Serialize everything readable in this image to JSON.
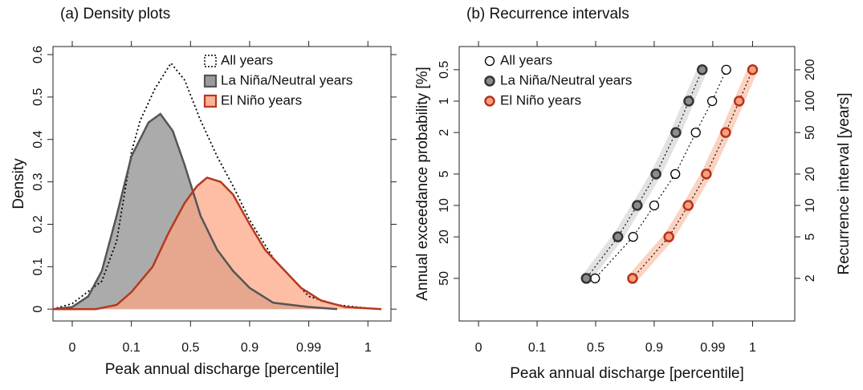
{
  "chart_data": [
    {
      "type": "density",
      "title": "(a) Density plots",
      "x_label": "Peak annual discharge [percentile]",
      "y_label": "Density",
      "xlim": [
        -0.326,
        5.39
      ],
      "xticks": [
        {
          "value": 0,
          "label": "0"
        },
        {
          "value": 1,
          "label": "0.1"
        },
        {
          "value": 2,
          "label": "0.5"
        },
        {
          "value": 3,
          "label": "0.9"
        },
        {
          "value": 4,
          "label": "0.99"
        },
        {
          "value": 5,
          "label": "1"
        }
      ],
      "ylim": [
        -0.028,
        0.619
      ],
      "yticks": [
        0,
        0.1,
        0.2,
        0.3,
        0.4,
        0.5,
        0.6
      ],
      "grid": false,
      "legend": "top-right",
      "series": [
        {
          "name": "All years",
          "color": "#000000",
          "line": "dotted",
          "x": [
            -0.33,
            0,
            0.5,
            0.75,
            1.0,
            1.15,
            1.4,
            1.67,
            1.9,
            2.17,
            2.45,
            2.72,
            3.0,
            3.4,
            4.0,
            4.48,
            5.0,
            5.23
          ],
          "values": [
            0,
            0.013,
            0.066,
            0.16,
            0.37,
            0.445,
            0.52,
            0.58,
            0.54,
            0.445,
            0.36,
            0.29,
            0.21,
            0.12,
            0.03,
            0.01,
            0.002,
            0
          ]
        },
        {
          "name": "La Niña/Neutral years",
          "color": "#555555",
          "fill": "#8a8a8a",
          "line": "solid",
          "x": [
            -0.33,
            0,
            0.27,
            0.5,
            0.75,
            1.0,
            1.29,
            1.49,
            1.7,
            1.9,
            2.17,
            2.45,
            2.72,
            3.0,
            3.4,
            4.0,
            4.48
          ],
          "values": [
            0,
            0.005,
            0.03,
            0.09,
            0.22,
            0.36,
            0.44,
            0.46,
            0.42,
            0.34,
            0.22,
            0.14,
            0.09,
            0.05,
            0.015,
            0.005,
            0
          ]
        },
        {
          "name": "El Niño years",
          "color": "#b5391f",
          "fill": "#fca582",
          "line": "solid",
          "x": [
            -0.33,
            0.4,
            0.75,
            1.0,
            1.36,
            1.63,
            1.9,
            2.11,
            2.28,
            2.51,
            2.72,
            3.0,
            3.26,
            3.53,
            3.87,
            4.21,
            4.62,
            5.23
          ],
          "values": [
            0,
            0,
            0.01,
            0.04,
            0.1,
            0.18,
            0.25,
            0.29,
            0.31,
            0.3,
            0.27,
            0.2,
            0.14,
            0.1,
            0.05,
            0.02,
            0.005,
            0
          ]
        }
      ]
    },
    {
      "type": "scatter",
      "title": "(b) Recurrence intervals",
      "x_label": "Peak annual discharge [percentile]",
      "y_label": "Annual exceedance probability [%]",
      "y2_label": "Recurrence interval [years]",
      "xlim": [
        -0.33,
        5.4
      ],
      "xticks": [
        {
          "value": 0,
          "label": "0"
        },
        {
          "value": 1,
          "label": "0.1"
        },
        {
          "value": 2,
          "label": "0.5"
        },
        {
          "value": 3,
          "label": "0.9"
        },
        {
          "value": 4,
          "label": "0.99"
        },
        {
          "value": 4.68,
          "label": "1"
        }
      ],
      "log_y": true,
      "ylim": [
        128,
        0.3
      ],
      "yticks": [
        0.5,
        1,
        2,
        5,
        10,
        20,
        50
      ],
      "y2lim": [
        0.78,
        334
      ],
      "y2ticks": [
        200,
        100,
        50,
        20,
        10,
        5,
        2
      ],
      "grid": false,
      "legend": "top-left",
      "series": [
        {
          "name": "All years",
          "color": "#000000",
          "fill": "#ffffff",
          "line": "dotted",
          "x": [
            4.23,
            3.99,
            3.71,
            3.36,
            3.0,
            2.64,
            1.99
          ],
          "values": [
            0.5,
            1,
            2,
            5,
            10,
            20,
            50
          ]
        },
        {
          "name": "La Niña/Neutral years",
          "color": "#333333",
          "fill": "#8c8c8c",
          "band_color": "#e2e2e2",
          "line": "dotted",
          "x": [
            3.82,
            3.59,
            3.37,
            3.03,
            2.71,
            2.38,
            1.84
          ],
          "values": [
            0.5,
            1,
            2,
            5,
            10,
            20,
            50
          ]
        },
        {
          "name": "El Niño years",
          "color": "#b8321e",
          "fill": "#f6a07c",
          "band_color": "#fcd2c0",
          "line": "dotted",
          "x": [
            4.68,
            4.45,
            4.22,
            3.89,
            3.58,
            3.25,
            2.63
          ],
          "values": [
            0.5,
            1,
            2,
            5,
            10,
            20,
            50
          ]
        }
      ]
    }
  ]
}
